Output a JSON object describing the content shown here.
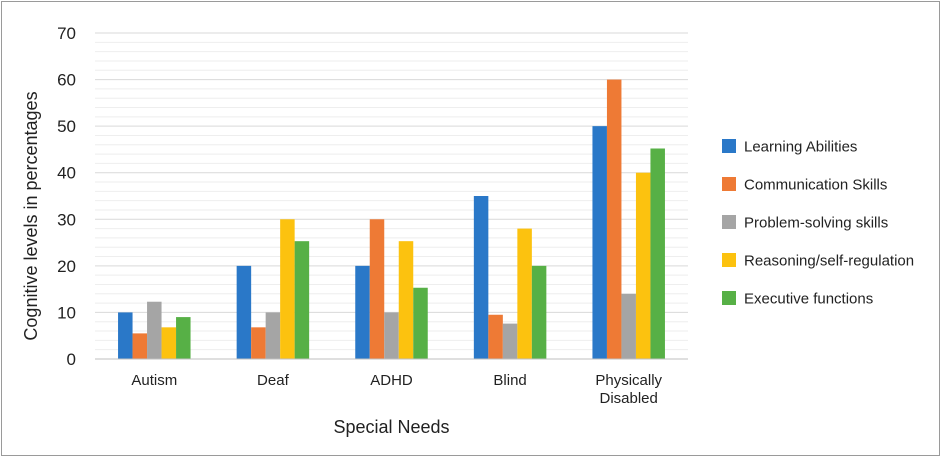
{
  "chart_data": {
    "type": "bar",
    "title": "",
    "xlabel": "Special Needs",
    "ylabel": "Cognitive levels in percentages",
    "ylim": [
      0,
      70
    ],
    "yticks": [
      0,
      10,
      20,
      30,
      40,
      50,
      60,
      70
    ],
    "grid": true,
    "legend_position": "right",
    "categories": [
      "Autism",
      "Deaf",
      "ADHD",
      "Blind",
      "Physically Disabled"
    ],
    "category_lines": [
      [
        "Autism"
      ],
      [
        "Deaf"
      ],
      [
        "ADHD"
      ],
      [
        "Blind"
      ],
      [
        "Physically",
        "Disabled"
      ]
    ],
    "series": [
      {
        "name": "Learning Abilities",
        "color": "#2a78c8",
        "values": [
          10,
          20,
          20,
          35,
          50
        ]
      },
      {
        "name": "Communication Skills",
        "color": "#ee7a35",
        "values": [
          5.5,
          6.8,
          30,
          9.5,
          60
        ]
      },
      {
        "name": "Problem-solving skills",
        "color": "#a5a5a5",
        "values": [
          12.3,
          10,
          10,
          7.6,
          14
        ]
      },
      {
        "name": "Reasoning/self-regulation",
        "color": "#fcc20f",
        "values": [
          6.8,
          30,
          25.3,
          28,
          40
        ]
      },
      {
        "name": "Executive functions",
        "color": "#57b046",
        "values": [
          9,
          25.3,
          15.3,
          20,
          45.2
        ]
      }
    ]
  }
}
